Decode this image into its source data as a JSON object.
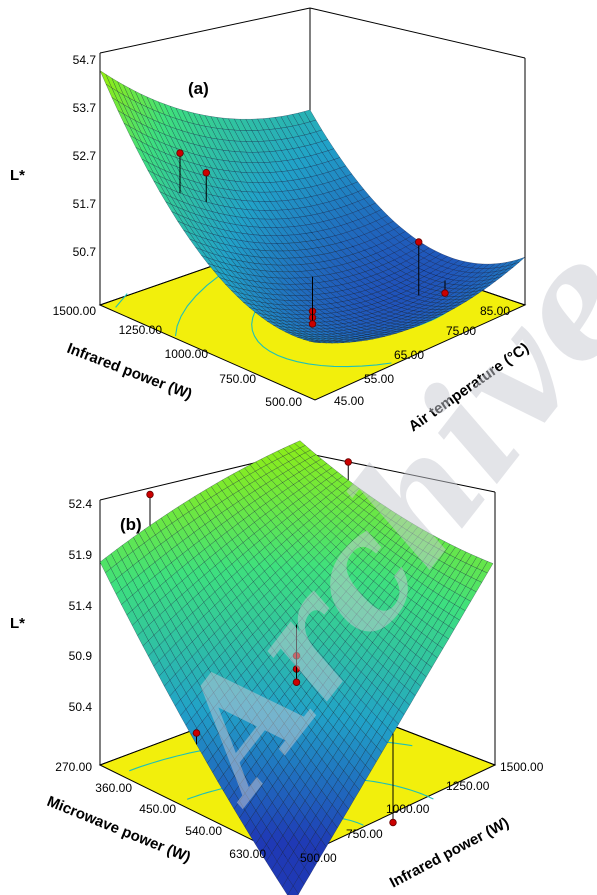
{
  "watermark": "Archive",
  "colors": {
    "floor": "#f2ef0c",
    "contour": "#20c0b6",
    "low": "#1f39b5",
    "mid": "#21a2c8",
    "high": "#3ee07e",
    "top": "#9ff000",
    "point": "#cc0000"
  },
  "chart_data": [
    {
      "type": "surface",
      "panel_label": "(a)",
      "zlabel": "L*",
      "xlabel": "Infrared power (W)",
      "ylabel": "Air temperature (°C)",
      "z_ticks": [
        "54.7",
        "53.7",
        "52.7",
        "51.7",
        "50.7"
      ],
      "x_ticks": [
        "500.00",
        "750.00",
        "1000.00",
        "1250.00",
        "1500.00"
      ],
      "y_ticks": [
        "45.00",
        "55.00",
        "65.00",
        "75.00",
        "85.00"
      ],
      "xlim": [
        500,
        1500
      ],
      "ylim": [
        45,
        85
      ],
      "zlim": [
        50.7,
        54.7
      ],
      "surface_corners": {
        "x500_y45": 51.6,
        "x1500_y45": 54.7,
        "x500_y85": 51.1,
        "x1500_y85": 52.9
      },
      "surface_min": {
        "x": 850,
        "y": 70,
        "z": 50.7
      },
      "points": [
        {
          "x": 1250,
          "y": 50,
          "z": 53.3
        },
        {
          "x": 1250,
          "y": 55,
          "z": 52.8
        },
        {
          "x": 750,
          "y": 75,
          "z": 51.7
        },
        {
          "x": 750,
          "y": 80,
          "z": 50.7
        },
        {
          "x": 1000,
          "y": 65,
          "z": 50.6
        },
        {
          "x": 1000,
          "y": 65,
          "z": 50.5
        },
        {
          "x": 1000,
          "y": 65,
          "z": 50.4
        }
      ]
    },
    {
      "type": "surface",
      "panel_label": "(b)",
      "zlabel": "L*",
      "xlabel": "Microwave power (W)",
      "ylabel": "Infrared power (W)",
      "z_ticks": [
        "52.4",
        "51.9",
        "51.4",
        "50.9",
        "50.4"
      ],
      "x_ticks": [
        "270.00",
        "360.00",
        "450.00",
        "540.00",
        "630.00"
      ],
      "y_ticks": [
        "500.00",
        "750.00",
        "1000.00",
        "1250.00",
        "1500.00"
      ],
      "xlim": [
        270,
        630
      ],
      "ylim": [
        500,
        1500
      ],
      "zlim": [
        50.4,
        52.4
      ],
      "surface_corners": {
        "x270_y500": 51.9,
        "x630_y500": 49.9,
        "x270_y1500": 52.5,
        "x630_y1500": 51.5
      },
      "points": [
        {
          "x": 270,
          "y": 750,
          "z": 52.3
        },
        {
          "x": 360,
          "y": 1500,
          "z": 52.3
        },
        {
          "x": 450,
          "y": 1000,
          "z": 51.3
        },
        {
          "x": 450,
          "y": 1000,
          "z": 51.2
        },
        {
          "x": 450,
          "y": 1000,
          "z": 51.1
        },
        {
          "x": 450,
          "y": 500,
          "z": 51.0
        },
        {
          "x": 630,
          "y": 1000,
          "z": 50.4
        }
      ]
    }
  ]
}
